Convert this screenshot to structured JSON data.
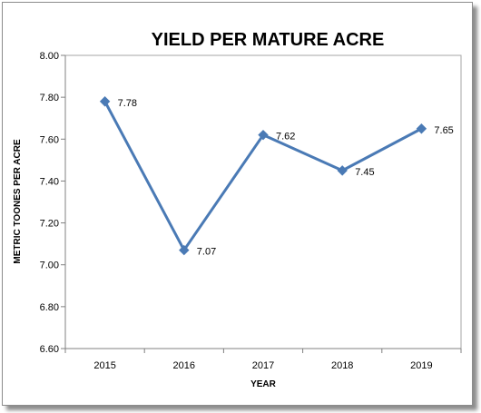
{
  "chart_data": {
    "type": "line",
    "title": "YIELD PER MATURE ACRE",
    "xlabel": "YEAR",
    "ylabel": "METRIC TOONES PER ACRE",
    "categories": [
      "2015",
      "2016",
      "2017",
      "2018",
      "2019"
    ],
    "series": [
      {
        "values": [
          7.78,
          7.07,
          7.62,
          7.45,
          7.65
        ],
        "color": "#4a7ab5"
      }
    ],
    "data_labels": [
      "7.78",
      "7.07",
      "7.62",
      "7.45",
      "7.65"
    ],
    "ylim": [
      6.6,
      8.0
    ],
    "y_ticks": [
      "6.60",
      "6.80",
      "7.00",
      "7.20",
      "7.40",
      "7.60",
      "7.80",
      "8.00"
    ],
    "grid": false,
    "legend": "none"
  }
}
